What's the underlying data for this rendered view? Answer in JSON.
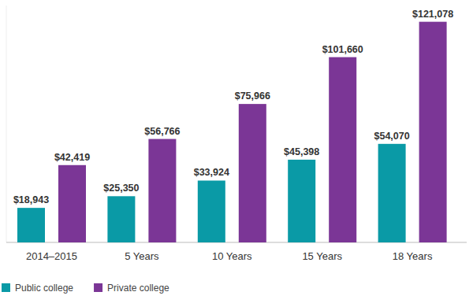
{
  "chart_data": {
    "type": "bar",
    "categories": [
      "2014–2015",
      "5 Years",
      "10 Years",
      "15 Years",
      "18 Years"
    ],
    "series": [
      {
        "name": "Public college",
        "color": "#0a9aa6",
        "values": [
          18943,
          25350,
          33924,
          45398,
          54070
        ],
        "value_labels": [
          "$18,943",
          "$25,350",
          "$33,924",
          "$45,398",
          "$54,070"
        ]
      },
      {
        "name": "Private college",
        "color": "#7b3696",
        "values": [
          42419,
          56766,
          75966,
          101660,
          121078
        ],
        "value_labels": [
          "$42,419",
          "$56,766",
          "$75,966",
          "$101,660",
          "$121,078"
        ]
      }
    ],
    "ylim": [
      0,
      130000
    ],
    "yticks": [
      0
    ],
    "tick_labels": "x",
    "data_labels": true,
    "legend": "bottom-left",
    "grid": false
  }
}
